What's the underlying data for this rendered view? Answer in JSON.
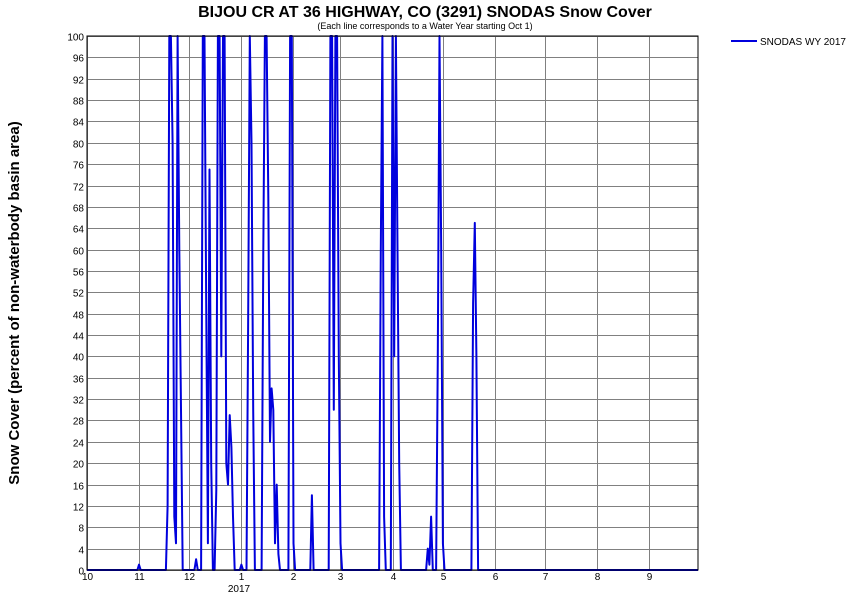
{
  "chart_data": {
    "type": "line",
    "title": "BIJOU CR AT 36 HIGHWAY, CO (3291) SNODAS Snow Cover",
    "subtitle": "(Each line corresponds to a Water Year starting Oct 1)",
    "ylabel": "Snow Cover (percent of non-waterbody basin area)",
    "xlabel": "",
    "ylim": [
      0,
      100
    ],
    "yticks": [
      0,
      4,
      8,
      12,
      16,
      20,
      24,
      28,
      32,
      36,
      40,
      44,
      48,
      52,
      56,
      60,
      64,
      68,
      72,
      76,
      80,
      84,
      88,
      92,
      96,
      100
    ],
    "xlim": [
      "2016-10-01",
      "2017-09-30"
    ],
    "xticks": [
      {
        "label": "10",
        "date": "2016-10-01"
      },
      {
        "label": "11",
        "date": "2016-11-01"
      },
      {
        "label": "12",
        "date": "2016-12-01"
      },
      {
        "label": "1",
        "date": "2017-01-01"
      },
      {
        "label": "2",
        "date": "2017-02-01"
      },
      {
        "label": "3",
        "date": "2017-03-01"
      },
      {
        "label": "4",
        "date": "2017-04-01"
      },
      {
        "label": "5",
        "date": "2017-05-01"
      },
      {
        "label": "6",
        "date": "2017-06-01"
      },
      {
        "label": "7",
        "date": "2017-07-01"
      },
      {
        "label": "8",
        "date": "2017-08-01"
      },
      {
        "label": "9",
        "date": "2017-09-01"
      }
    ],
    "year_label": "2017",
    "grid": true,
    "legend_position": "top-right",
    "series": [
      {
        "name": "SNODAS WY 2017",
        "color": "#0000dd",
        "points": [
          [
            "2016-10-01",
            0
          ],
          [
            "2016-10-31",
            0
          ],
          [
            "2016-11-01",
            1
          ],
          [
            "2016-11-02",
            0
          ],
          [
            "2016-11-17",
            0
          ],
          [
            "2016-11-18",
            12
          ],
          [
            "2016-11-19",
            100
          ],
          [
            "2016-11-20",
            100
          ],
          [
            "2016-11-21",
            80
          ],
          [
            "2016-11-22",
            10
          ],
          [
            "2016-11-23",
            5
          ],
          [
            "2016-11-24",
            100
          ],
          [
            "2016-11-25",
            60
          ],
          [
            "2016-11-26",
            30
          ],
          [
            "2016-11-27",
            0
          ],
          [
            "2016-12-04",
            0
          ],
          [
            "2016-12-05",
            2
          ],
          [
            "2016-12-06",
            0
          ],
          [
            "2016-12-08",
            0
          ],
          [
            "2016-12-09",
            100
          ],
          [
            "2016-12-10",
            100
          ],
          [
            "2016-12-11",
            50
          ],
          [
            "2016-12-12",
            5
          ],
          [
            "2016-12-13",
            75
          ],
          [
            "2016-12-14",
            20
          ],
          [
            "2016-12-15",
            0
          ],
          [
            "2016-12-16",
            0
          ],
          [
            "2016-12-17",
            15
          ],
          [
            "2016-12-18",
            100
          ],
          [
            "2016-12-19",
            100
          ],
          [
            "2016-12-20",
            40
          ],
          [
            "2016-12-21",
            100
          ],
          [
            "2016-12-22",
            100
          ],
          [
            "2016-12-23",
            20
          ],
          [
            "2016-12-24",
            16
          ],
          [
            "2016-12-25",
            29
          ],
          [
            "2016-12-26",
            23
          ],
          [
            "2016-12-27",
            10
          ],
          [
            "2016-12-28",
            0
          ],
          [
            "2016-12-31",
            0
          ],
          [
            "2017-01-01",
            1
          ],
          [
            "2017-01-02",
            0
          ],
          [
            "2017-01-04",
            0
          ],
          [
            "2017-01-05",
            45
          ],
          [
            "2017-01-06",
            100
          ],
          [
            "2017-01-07",
            80
          ],
          [
            "2017-01-08",
            30
          ],
          [
            "2017-01-09",
            0
          ],
          [
            "2017-01-13",
            0
          ],
          [
            "2017-01-14",
            60
          ],
          [
            "2017-01-15",
            100
          ],
          [
            "2017-01-16",
            100
          ],
          [
            "2017-01-17",
            70
          ],
          [
            "2017-01-18",
            24
          ],
          [
            "2017-01-19",
            34
          ],
          [
            "2017-01-20",
            30
          ],
          [
            "2017-01-21",
            5
          ],
          [
            "2017-01-22",
            16
          ],
          [
            "2017-01-23",
            3
          ],
          [
            "2017-01-24",
            0
          ],
          [
            "2017-01-29",
            0
          ],
          [
            "2017-01-30",
            100
          ],
          [
            "2017-01-31",
            100
          ],
          [
            "2017-02-01",
            5
          ],
          [
            "2017-02-02",
            0
          ],
          [
            "2017-02-11",
            0
          ],
          [
            "2017-02-12",
            14
          ],
          [
            "2017-02-13",
            0
          ],
          [
            "2017-02-22",
            0
          ],
          [
            "2017-02-23",
            100
          ],
          [
            "2017-02-24",
            100
          ],
          [
            "2017-02-25",
            30
          ],
          [
            "2017-02-26",
            100
          ],
          [
            "2017-02-27",
            100
          ],
          [
            "2017-02-28",
            40
          ],
          [
            "2017-03-01",
            5
          ],
          [
            "2017-03-02",
            0
          ],
          [
            "2017-03-24",
            0
          ],
          [
            "2017-03-25",
            60
          ],
          [
            "2017-03-26",
            100
          ],
          [
            "2017-03-27",
            10
          ],
          [
            "2017-03-28",
            0
          ],
          [
            "2017-03-31",
            0
          ],
          [
            "2017-04-01",
            100
          ],
          [
            "2017-04-02",
            40
          ],
          [
            "2017-04-03",
            100
          ],
          [
            "2017-04-04",
            60
          ],
          [
            "2017-04-05",
            20
          ],
          [
            "2017-04-06",
            0
          ],
          [
            "2017-04-21",
            0
          ],
          [
            "2017-04-22",
            4
          ],
          [
            "2017-04-23",
            1
          ],
          [
            "2017-04-24",
            10
          ],
          [
            "2017-04-25",
            0
          ],
          [
            "2017-04-27",
            0
          ],
          [
            "2017-04-28",
            40
          ],
          [
            "2017-04-29",
            100
          ],
          [
            "2017-04-30",
            60
          ],
          [
            "2017-05-01",
            5
          ],
          [
            "2017-05-02",
            0
          ],
          [
            "2017-05-18",
            0
          ],
          [
            "2017-05-19",
            50
          ],
          [
            "2017-05-20",
            65
          ],
          [
            "2017-05-21",
            40
          ],
          [
            "2017-05-22",
            0
          ],
          [
            "2017-09-30",
            0
          ]
        ]
      }
    ]
  }
}
